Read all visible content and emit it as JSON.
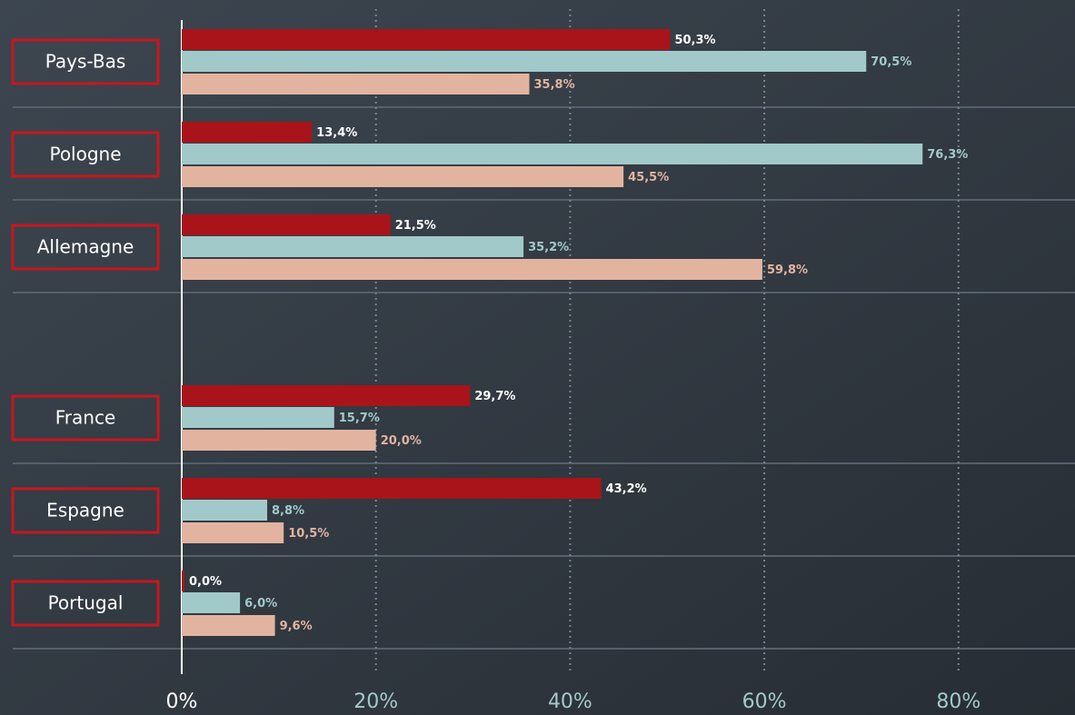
{
  "chart_data": {
    "type": "hbar",
    "categories": [
      "Pays-Bas",
      "Pologne",
      "Allemagne",
      null,
      "France",
      "Espagne",
      "Portugal"
    ],
    "series": [
      {
        "color": "#a8141a",
        "label_color": "#ffffff",
        "values": [
          50.3,
          13.4,
          21.5,
          null,
          29.7,
          43.2,
          0.0
        ],
        "value_labels": [
          "50,3%",
          "13,4%",
          "21,5%",
          null,
          "29,7%",
          "43,2%",
          "0,0%"
        ]
      },
      {
        "color": "#a2c9c9",
        "label_color": "#a2c9c9",
        "values": [
          70.5,
          76.3,
          35.2,
          null,
          15.7,
          8.8,
          6.0
        ],
        "value_labels": [
          "70,5%",
          "76,3%",
          "35,2%",
          null,
          "15,7%",
          "8,8%",
          "6,0%"
        ]
      },
      {
        "color": "#e2b4a0",
        "label_color": "#e2b4a0",
        "values": [
          35.8,
          45.5,
          59.8,
          null,
          20.0,
          10.5,
          9.6
        ],
        "value_labels": [
          "35,8%",
          "45,5%",
          "59,8%",
          null,
          "20,0%",
          "10,5%",
          "9,6%"
        ]
      }
    ],
    "xlim": [
      0,
      92
    ],
    "xticks": [
      {
        "value": 0,
        "label": "0%"
      },
      {
        "value": 20,
        "label": "20%"
      },
      {
        "value": 40,
        "label": "40%"
      },
      {
        "value": 60,
        "label": "60%"
      },
      {
        "value": 80,
        "label": "80%"
      }
    ],
    "grid": true
  }
}
